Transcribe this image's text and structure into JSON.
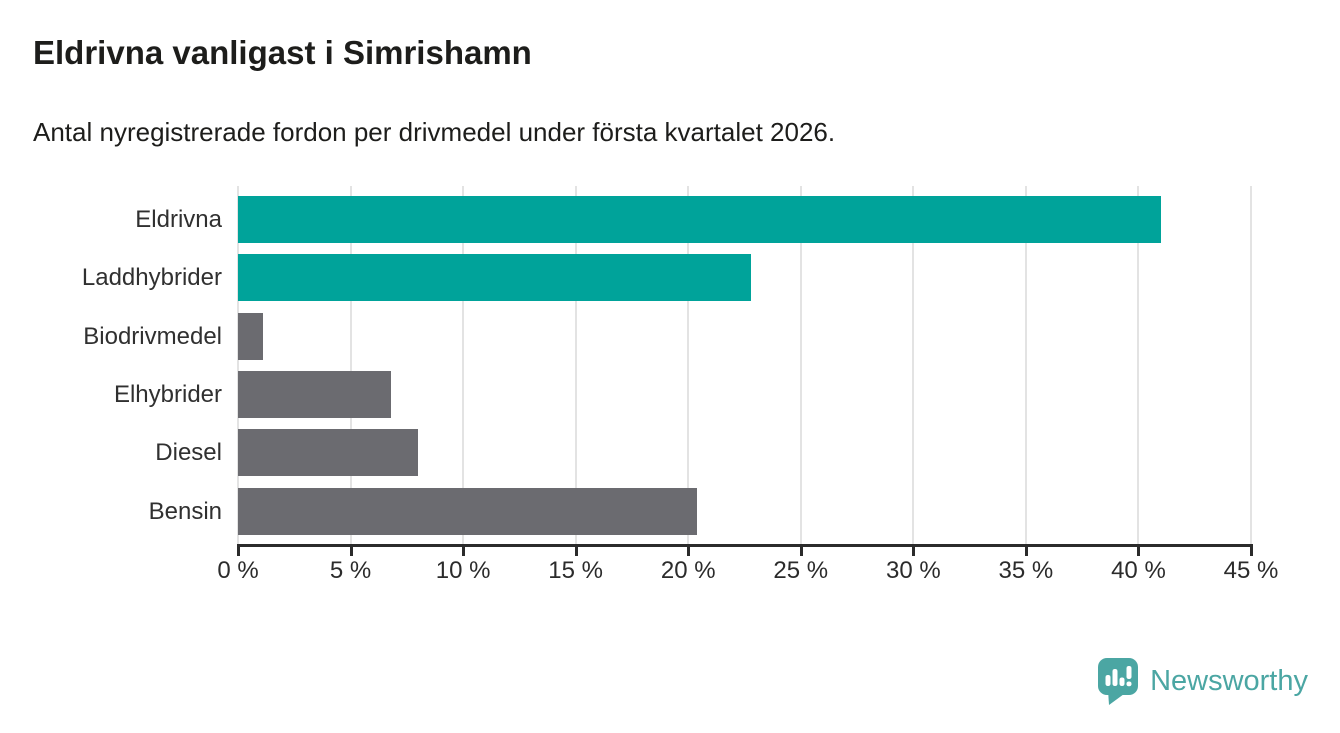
{
  "header": {
    "title": "Eldrivna vanligast i Simrishamn",
    "subtitle": "Antal nyregistrerade fordon per drivmedel under första kvartalet 2026."
  },
  "chart_data": {
    "type": "bar",
    "orientation": "horizontal",
    "title": "Eldrivna vanligast i Simrishamn",
    "subtitle": "Antal nyregistrerade fordon per drivmedel under första kvartalet 2026.",
    "xlabel": "",
    "ylabel": "",
    "unit": "%",
    "categories": [
      "Eldrivna",
      "Laddhybrider",
      "Biodrivmedel",
      "Elhybrider",
      "Diesel",
      "Bensin"
    ],
    "values": [
      41.0,
      22.8,
      1.1,
      6.8,
      8.0,
      20.4
    ],
    "bar_color_keys": [
      "highlight",
      "highlight",
      "muted",
      "muted",
      "muted",
      "muted"
    ],
    "xlim": [
      0,
      45
    ],
    "x_tick_step": 5,
    "x_tick_labels": [
      "0 %",
      "5 %",
      "10 %",
      "15 %",
      "20 %",
      "25 %",
      "30 %",
      "35 %",
      "40 %",
      "45 %"
    ],
    "grid": true,
    "legend": "none"
  },
  "colors": {
    "highlight": "#00a39a",
    "muted": "#6b6b70",
    "gridline": "#e3e3e3",
    "axis": "#2b2b2b",
    "brand": "#4ba6a3"
  },
  "footer": {
    "brand": "Newsworthy"
  }
}
